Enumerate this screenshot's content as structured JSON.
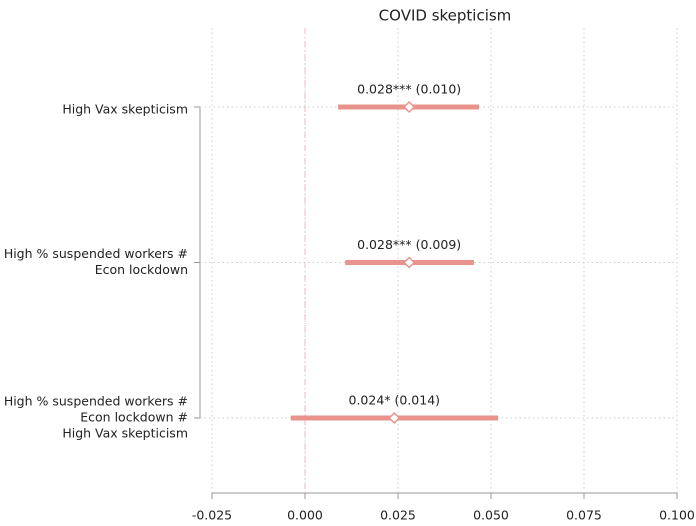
{
  "chart_data": {
    "type": "coefplot",
    "title": "COVID skepticism",
    "categories": [
      [
        "High Vax skepticism"
      ],
      [
        "High % suspended workers #",
        "Econ lockdown"
      ],
      [
        "High % suspended workers #",
        "Econ lockdown #",
        "High Vax skepticism"
      ]
    ],
    "values": [
      0.028,
      0.028,
      0.024
    ],
    "value_labels": [
      "0.028*** (0.010)",
      "0.028*** (0.009)",
      "0.024* (0.014)"
    ],
    "ci_low": [
      0.0089,
      0.0108,
      -0.0038
    ],
    "ci_high": [
      0.0468,
      0.0454,
      0.0519
    ],
    "color": "#e8938c",
    "reference_line": 0,
    "xlim": [
      -0.025,
      0.1
    ],
    "xticks": [
      {
        "value": -0.025,
        "label": "-0.025"
      },
      {
        "value": 0,
        "label": "0.000"
      },
      {
        "value": 0.025,
        "label": "0.025"
      },
      {
        "value": 0.05,
        "label": "0.050"
      },
      {
        "value": 0.075,
        "label": "0.075"
      },
      {
        "value": 0.1,
        "label": "0.100"
      }
    ],
    "grid": true
  }
}
